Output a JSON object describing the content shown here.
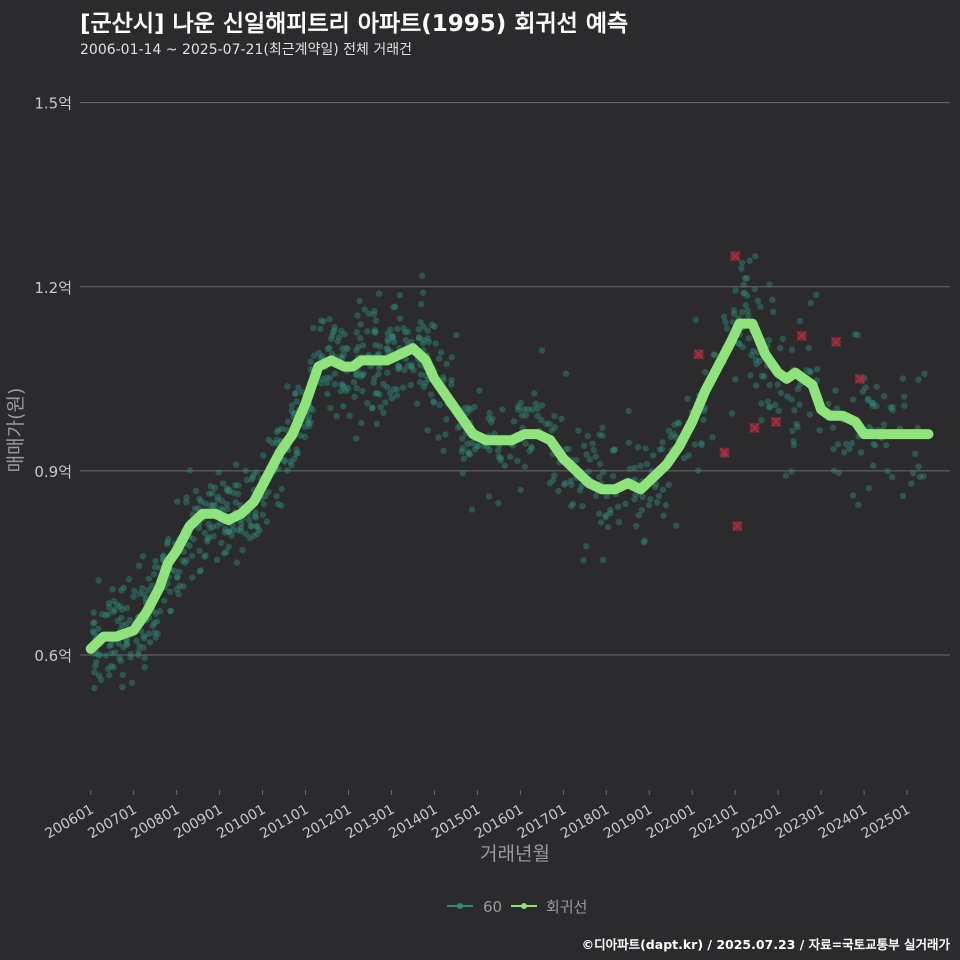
{
  "header": {
    "title": "[군산시] 나운 신일해피트리 아파트(1995) 회귀선 예측",
    "subtitle": "2006-01-14 ~ 2025-07-21(최근계약일) 전체 거래건"
  },
  "credit": "©디아파트(dapt.kr) / 2025.07.23 / 자료=국토교통부 실거래가",
  "colors": {
    "background": "#2b2b2d",
    "gridline": "#6b6b6b",
    "scatter": "#2e8b7a",
    "outlier": "#b22d3a",
    "regression": "#8ee37a",
    "axis_text": "#c8c8c8"
  },
  "chart_data": {
    "type": "scatter",
    "title": "[군산시] 나운 신일해피트리 아파트(1995) 회귀선 예측",
    "xlabel": "거래년월",
    "ylabel": "매매가(원)",
    "x_unit": "year (decimal)",
    "y_unit": "억원",
    "xlim": [
      2005.75,
      2026.0
    ],
    "ylim": [
      0.38,
      1.55
    ],
    "x_ticks": [
      2006,
      2007,
      2008,
      2009,
      2010,
      2011,
      2012,
      2013,
      2014,
      2015,
      2016,
      2017,
      2018,
      2019,
      2020,
      2021,
      2022,
      2023,
      2024,
      2025
    ],
    "x_tick_labels": [
      "200601",
      "200701",
      "200801",
      "200901",
      "201001",
      "201101",
      "201201",
      "201301",
      "201401",
      "201501",
      "201601",
      "201701",
      "201801",
      "201901",
      "202001",
      "202101",
      "202201",
      "202301",
      "202401",
      "202501"
    ],
    "y_ticks": [
      0.6,
      0.9,
      1.2,
      1.5
    ],
    "y_tick_labels": [
      "0.6억",
      "0.9억",
      "1.2억",
      "1.5억"
    ],
    "grid": true,
    "legend": {
      "position": "bottom",
      "entries": [
        "60",
        "회귀선"
      ]
    },
    "series": [
      {
        "name": "회귀선",
        "kind": "line",
        "x": [
          2006.0,
          2006.3,
          2006.6,
          2007.0,
          2007.3,
          2007.6,
          2007.8,
          2008.0,
          2008.3,
          2008.6,
          2008.9,
          2009.2,
          2009.5,
          2009.8,
          2010.1,
          2010.4,
          2010.7,
          2011.0,
          2011.3,
          2011.6,
          2011.9,
          2012.1,
          2012.3,
          2012.6,
          2012.9,
          2013.2,
          2013.5,
          2013.8,
          2014.0,
          2014.3,
          2014.6,
          2014.9,
          2015.2,
          2015.5,
          2015.8,
          2016.1,
          2016.4,
          2016.7,
          2017.0,
          2017.3,
          2017.6,
          2017.9,
          2018.2,
          2018.5,
          2018.8,
          2019.1,
          2019.4,
          2019.7,
          2020.0,
          2020.3,
          2020.6,
          2020.9,
          2021.1,
          2021.4,
          2021.7,
          2022.0,
          2022.2,
          2022.4,
          2022.6,
          2022.8,
          2023.0,
          2023.2,
          2023.5,
          2023.8,
          2024.0,
          2024.2,
          2024.5,
          2024.8,
          2025.1,
          2025.3,
          2025.5
        ],
        "values": [
          0.61,
          0.63,
          0.63,
          0.64,
          0.67,
          0.71,
          0.75,
          0.77,
          0.81,
          0.83,
          0.83,
          0.82,
          0.83,
          0.85,
          0.89,
          0.93,
          0.96,
          1.01,
          1.07,
          1.08,
          1.07,
          1.07,
          1.08,
          1.08,
          1.08,
          1.09,
          1.1,
          1.08,
          1.05,
          1.02,
          0.99,
          0.96,
          0.95,
          0.95,
          0.95,
          0.96,
          0.96,
          0.95,
          0.92,
          0.9,
          0.88,
          0.87,
          0.87,
          0.88,
          0.87,
          0.89,
          0.91,
          0.94,
          0.98,
          1.03,
          1.07,
          1.11,
          1.14,
          1.14,
          1.09,
          1.06,
          1.05,
          1.06,
          1.05,
          1.04,
          1.0,
          0.99,
          0.99,
          0.98,
          0.96,
          0.96,
          0.96,
          0.96,
          0.96,
          0.96,
          0.96
        ]
      },
      {
        "name": "outliers",
        "kind": "x-marker",
        "x": [
          2020.15,
          2020.75,
          2021.0,
          2021.05,
          2021.45,
          2021.95,
          2022.55,
          2023.35,
          2023.9
        ],
        "values": [
          1.09,
          0.93,
          1.25,
          0.81,
          0.97,
          0.98,
          1.12,
          1.11,
          1.05
        ]
      }
    ]
  }
}
